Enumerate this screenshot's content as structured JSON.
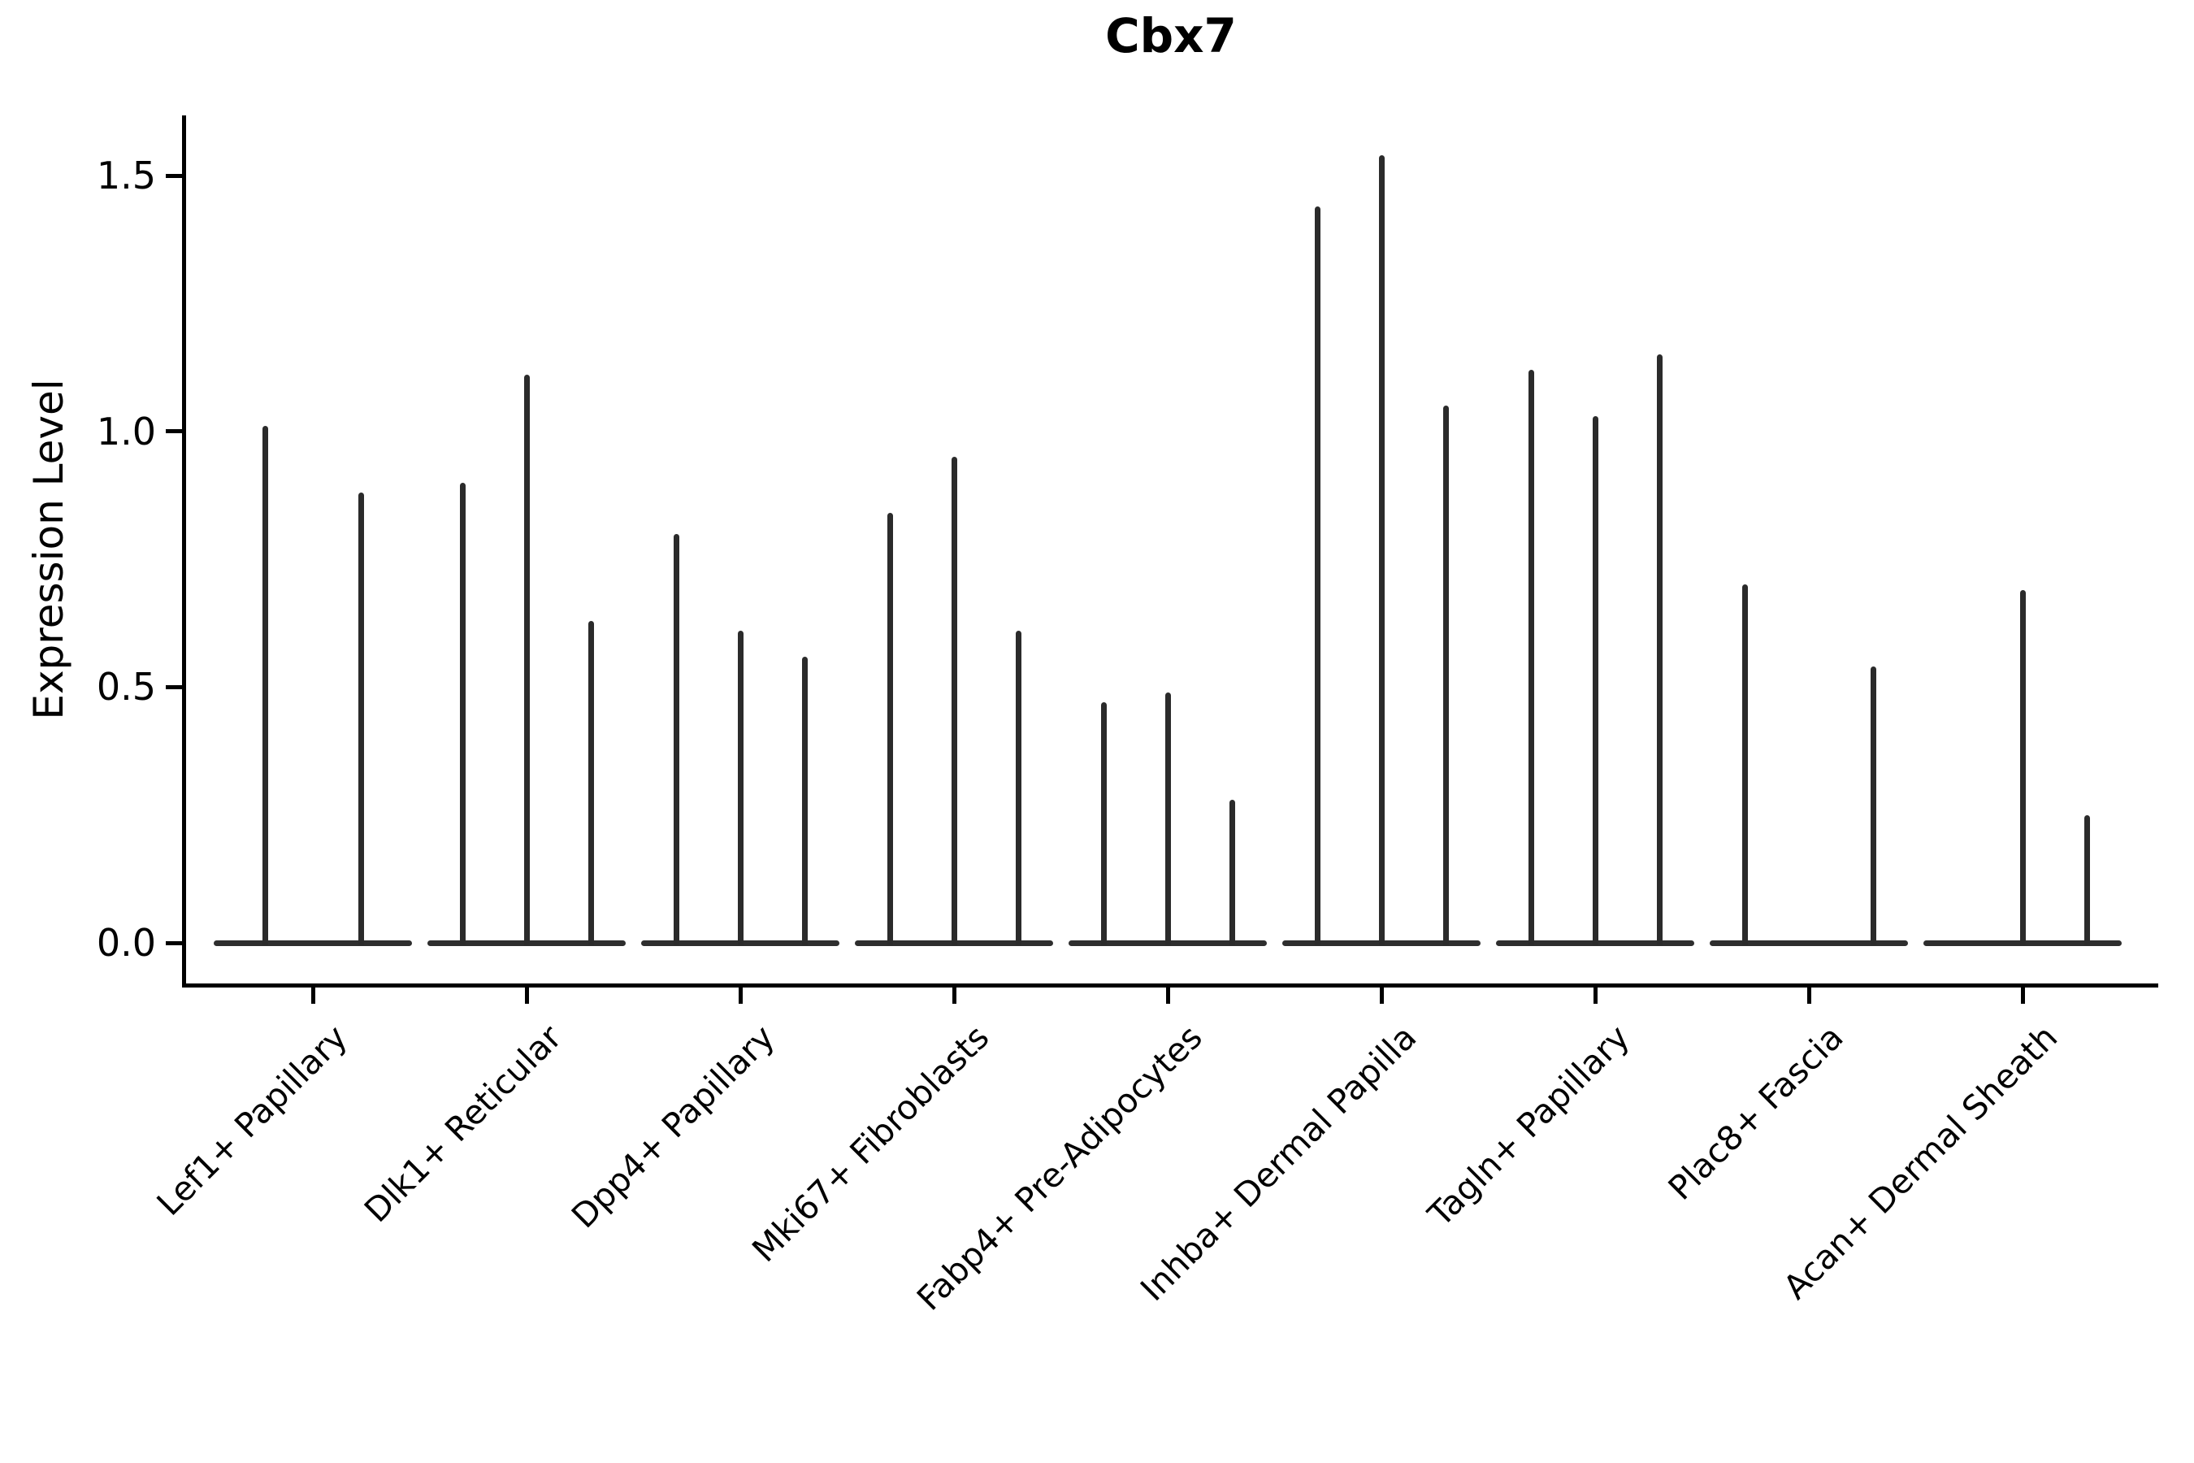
{
  "chart_data": {
    "type": "violin",
    "title": "Cbx7",
    "ylabel": "Expression Level",
    "xlabel": "",
    "yticks": [
      "0.0",
      "0.5",
      "1.0",
      "1.5"
    ],
    "ytick_values": [
      0.0,
      0.5,
      1.0,
      1.5
    ],
    "ylim": [
      -0.08,
      1.62
    ],
    "legend": "none",
    "grid": false,
    "colors": {
      "violin": "#2b2b2b",
      "baseline": "#2e2e2e",
      "axis": "#000000",
      "background": "#ffffff"
    },
    "categories": [
      "Lef1+ Papillary",
      "Dlk1+ Reticular",
      "Dpp4+ Papillary",
      "Mki67+ Fibroblasts",
      "Fabp4+ Pre-Adipocytes",
      "Inhba+ Dermal Papilla",
      "Tagln+ Papillary",
      "Plac8+ Fascia",
      "Acan+ Dermal Sheath"
    ],
    "groups": [
      {
        "category": "Lef1+ Papillary",
        "violins": [
          {
            "offset": -59,
            "max": 1.01
          },
          {
            "offset": 59,
            "max": 0.88
          }
        ]
      },
      {
        "category": "Dlk1+ Reticular",
        "violins": [
          {
            "offset": -79,
            "max": 0.9
          },
          {
            "offset": 0,
            "max": 1.11
          },
          {
            "offset": 79,
            "max": 0.63
          }
        ]
      },
      {
        "category": "Dpp4+ Papillary",
        "violins": [
          {
            "offset": -79,
            "max": 0.8
          },
          {
            "offset": 0,
            "max": 0.61
          },
          {
            "offset": 79,
            "max": 0.56
          }
        ]
      },
      {
        "category": "Mki67+ Fibroblasts",
        "violins": [
          {
            "offset": -79,
            "max": 0.84
          },
          {
            "offset": 0,
            "max": 0.95
          },
          {
            "offset": 79,
            "max": 0.61
          }
        ]
      },
      {
        "category": "Fabp4+ Pre-Adipocytes",
        "violins": [
          {
            "offset": -79,
            "max": 0.47
          },
          {
            "offset": 0,
            "max": 0.49
          },
          {
            "offset": 79,
            "max": 0.28
          }
        ]
      },
      {
        "category": "Inhba+ Dermal Papilla",
        "violins": [
          {
            "offset": -79,
            "max": 1.44
          },
          {
            "offset": 0,
            "max": 1.54
          },
          {
            "offset": 79,
            "max": 1.05
          }
        ]
      },
      {
        "category": "Tagln+ Papillary",
        "violins": [
          {
            "offset": -79,
            "max": 1.12
          },
          {
            "offset": 0,
            "max": 1.03
          },
          {
            "offset": 79,
            "max": 1.15
          }
        ]
      },
      {
        "category": "Plac8+ Fascia",
        "violins": [
          {
            "offset": -79,
            "max": 0.7
          },
          {
            "offset": 0,
            "max": 0.0
          },
          {
            "offset": 79,
            "max": 0.54
          }
        ]
      },
      {
        "category": "Acan+ Dermal Sheath",
        "violins": [
          {
            "offset": -79,
            "max": 0.0
          },
          {
            "offset": 0,
            "max": 0.69
          },
          {
            "offset": 79,
            "max": 0.25
          }
        ]
      }
    ]
  }
}
